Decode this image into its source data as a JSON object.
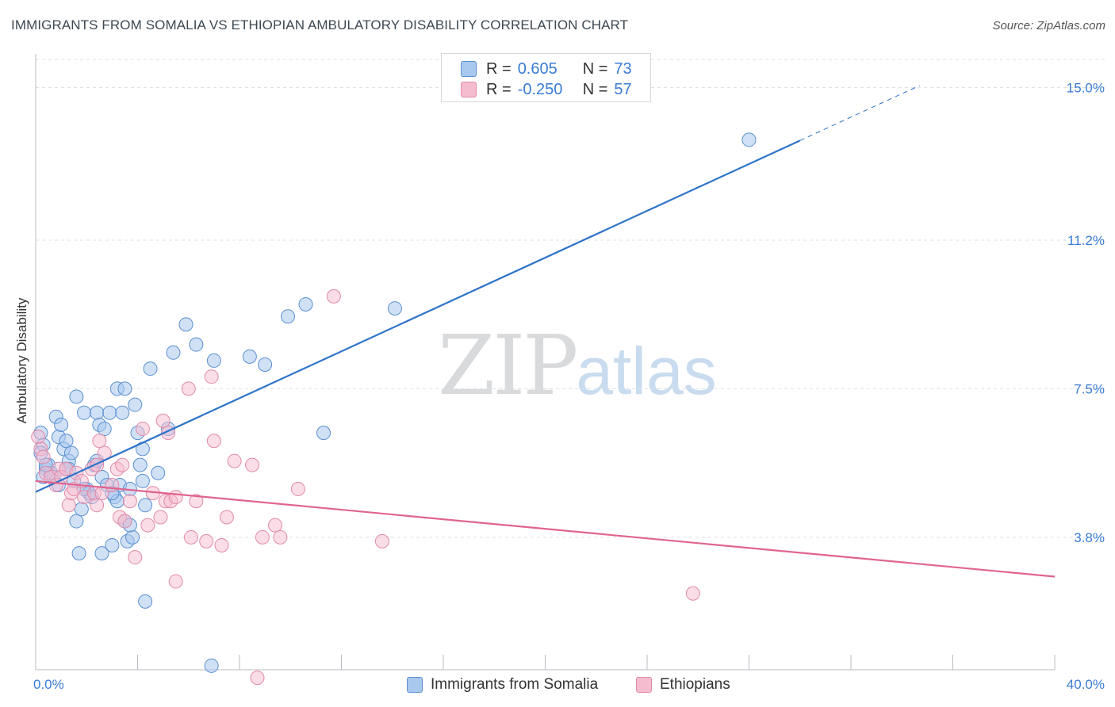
{
  "title": "IMMIGRANTS FROM SOMALIA VS ETHIOPIAN AMBULATORY DISABILITY CORRELATION CHART",
  "source": "Source: ZipAtlas.com",
  "watermark": {
    "zip": "ZIP",
    "atlas": "atlas"
  },
  "legend": {
    "rows": [
      {
        "r_label": "R =",
        "r_value": "0.605",
        "n_label": "N =",
        "n_value": "73"
      },
      {
        "r_label": "R =",
        "r_value": "-0.250",
        "n_label": "N =",
        "n_value": "57"
      }
    ]
  },
  "bottom_legend": {
    "somalia": "Immigrants from Somalia",
    "ethiopians": "Ethiopians"
  },
  "colors": {
    "somalia_fill": "#a9c8ee",
    "somalia_stroke": "#5b8fd0",
    "somalia_line": "#2f74c8",
    "ethiopians_fill": "#f5bcd0",
    "ethiopians_stroke": "#e28aa9",
    "ethiopians_line": "#e0648f",
    "value_text": "#3a7bd5",
    "grid": "#dde1e6"
  },
  "chart_data": {
    "type": "scatter",
    "title": "IMMIGRANTS FROM SOMALIA VS ETHIOPIAN AMBULATORY DISABILITY CORRELATION CHART",
    "xlabel": "",
    "ylabel": "Ambulatory Disability",
    "xlim": [
      0,
      40
    ],
    "ylim": [
      0.5,
      15.7
    ],
    "x_tick_labels": [
      "0.0%",
      "40.0%"
    ],
    "y_ticks": [
      3.8,
      7.5,
      11.2,
      15.0
    ],
    "y_tick_labels": [
      "3.8%",
      "7.5%",
      "11.2%",
      "15.0%"
    ],
    "grid": true,
    "legend_position": "top-center",
    "series": [
      {
        "name": "Immigrants from Somalia",
        "R": 0.605,
        "N": 73,
        "trend": {
          "x0": 0,
          "y0": 4.93,
          "x1": 30.0,
          "y1": 13.68,
          "dash_to_x": 34.7,
          "dash_to_y": 15.05
        },
        "points": [
          [
            0.2,
            6.4
          ],
          [
            0.3,
            6.1
          ],
          [
            0.2,
            5.9
          ],
          [
            0.4,
            5.5
          ],
          [
            0.3,
            5.3
          ],
          [
            0.5,
            5.6
          ],
          [
            0.6,
            5.4
          ],
          [
            0.7,
            5.3
          ],
          [
            0.8,
            6.8
          ],
          [
            0.9,
            6.3
          ],
          [
            0.9,
            5.1
          ],
          [
            1.0,
            6.6
          ],
          [
            1.1,
            6.0
          ],
          [
            1.2,
            6.2
          ],
          [
            1.3,
            5.7
          ],
          [
            1.3,
            5.5
          ],
          [
            1.4,
            5.9
          ],
          [
            1.5,
            5.2
          ],
          [
            1.6,
            7.3
          ],
          [
            1.6,
            4.2
          ],
          [
            1.7,
            3.4
          ],
          [
            1.8,
            4.5
          ],
          [
            1.9,
            6.9
          ],
          [
            2.0,
            5.0
          ],
          [
            2.1,
            4.9
          ],
          [
            2.2,
            4.8
          ],
          [
            2.3,
            5.6
          ],
          [
            2.4,
            5.7
          ],
          [
            2.4,
            6.9
          ],
          [
            2.5,
            6.6
          ],
          [
            2.6,
            5.3
          ],
          [
            2.7,
            6.5
          ],
          [
            2.6,
            3.4
          ],
          [
            2.8,
            5.1
          ],
          [
            2.9,
            6.9
          ],
          [
            3.0,
            3.6
          ],
          [
            3.1,
            4.8
          ],
          [
            3.2,
            4.7
          ],
          [
            3.2,
            7.5
          ],
          [
            3.3,
            5.1
          ],
          [
            3.4,
            6.9
          ],
          [
            3.5,
            7.5
          ],
          [
            3.5,
            4.2
          ],
          [
            3.6,
            3.7
          ],
          [
            3.7,
            5.0
          ],
          [
            3.8,
            3.8
          ],
          [
            3.7,
            4.1
          ],
          [
            3.9,
            7.1
          ],
          [
            4.0,
            6.4
          ],
          [
            4.1,
            5.6
          ],
          [
            4.2,
            6.0
          ],
          [
            4.2,
            5.2
          ],
          [
            4.3,
            4.6
          ],
          [
            4.3,
            2.2
          ],
          [
            4.5,
            8.0
          ],
          [
            4.8,
            5.4
          ],
          [
            5.2,
            6.5
          ],
          [
            5.4,
            8.4
          ],
          [
            5.9,
            9.1
          ],
          [
            6.3,
            8.6
          ],
          [
            6.9,
            0.6
          ],
          [
            7.0,
            8.2
          ],
          [
            8.4,
            8.3
          ],
          [
            9.0,
            8.1
          ],
          [
            9.9,
            9.3
          ],
          [
            10.6,
            9.6
          ],
          [
            11.3,
            6.4
          ],
          [
            14.1,
            9.5
          ],
          [
            28.0,
            13.7
          ],
          [
            0.4,
            5.6
          ],
          [
            1.2,
            5.5
          ],
          [
            1.9,
            5.0
          ],
          [
            3.0,
            4.9
          ]
        ]
      },
      {
        "name": "Ethiopians",
        "R": -0.25,
        "N": 57,
        "trend": {
          "x0": 0,
          "y0": 5.2,
          "x1": 40.0,
          "y1": 2.82
        },
        "points": [
          [
            0.1,
            6.3
          ],
          [
            0.2,
            6.0
          ],
          [
            0.3,
            5.8
          ],
          [
            0.4,
            5.4
          ],
          [
            0.6,
            5.3
          ],
          [
            0.8,
            5.1
          ],
          [
            0.9,
            5.5
          ],
          [
            1.0,
            5.3
          ],
          [
            1.2,
            5.5
          ],
          [
            1.3,
            4.6
          ],
          [
            1.4,
            4.9
          ],
          [
            1.5,
            5.0
          ],
          [
            1.6,
            5.4
          ],
          [
            1.8,
            5.2
          ],
          [
            1.9,
            4.8
          ],
          [
            2.2,
            5.5
          ],
          [
            2.3,
            4.9
          ],
          [
            2.4,
            5.6
          ],
          [
            2.4,
            4.6
          ],
          [
            2.5,
            6.2
          ],
          [
            2.6,
            4.9
          ],
          [
            2.7,
            5.9
          ],
          [
            3.0,
            5.1
          ],
          [
            3.2,
            5.5
          ],
          [
            3.3,
            4.3
          ],
          [
            3.4,
            5.6
          ],
          [
            3.5,
            4.2
          ],
          [
            3.7,
            4.7
          ],
          [
            3.9,
            3.3
          ],
          [
            4.2,
            6.5
          ],
          [
            4.4,
            4.1
          ],
          [
            4.6,
            4.9
          ],
          [
            4.9,
            4.3
          ],
          [
            5.0,
            6.7
          ],
          [
            5.1,
            4.7
          ],
          [
            5.2,
            6.4
          ],
          [
            5.3,
            4.7
          ],
          [
            5.5,
            4.8
          ],
          [
            5.5,
            2.7
          ],
          [
            6.0,
            7.5
          ],
          [
            6.1,
            3.8
          ],
          [
            6.3,
            4.7
          ],
          [
            6.7,
            3.7
          ],
          [
            6.9,
            7.8
          ],
          [
            7.0,
            6.2
          ],
          [
            7.3,
            3.6
          ],
          [
            7.5,
            4.3
          ],
          [
            7.8,
            5.7
          ],
          [
            8.5,
            5.6
          ],
          [
            8.7,
            0.3
          ],
          [
            8.9,
            3.8
          ],
          [
            9.4,
            4.1
          ],
          [
            9.6,
            3.8
          ],
          [
            10.3,
            5.0
          ],
          [
            11.7,
            9.8
          ],
          [
            13.6,
            3.7
          ],
          [
            25.8,
            2.4
          ]
        ]
      }
    ]
  }
}
